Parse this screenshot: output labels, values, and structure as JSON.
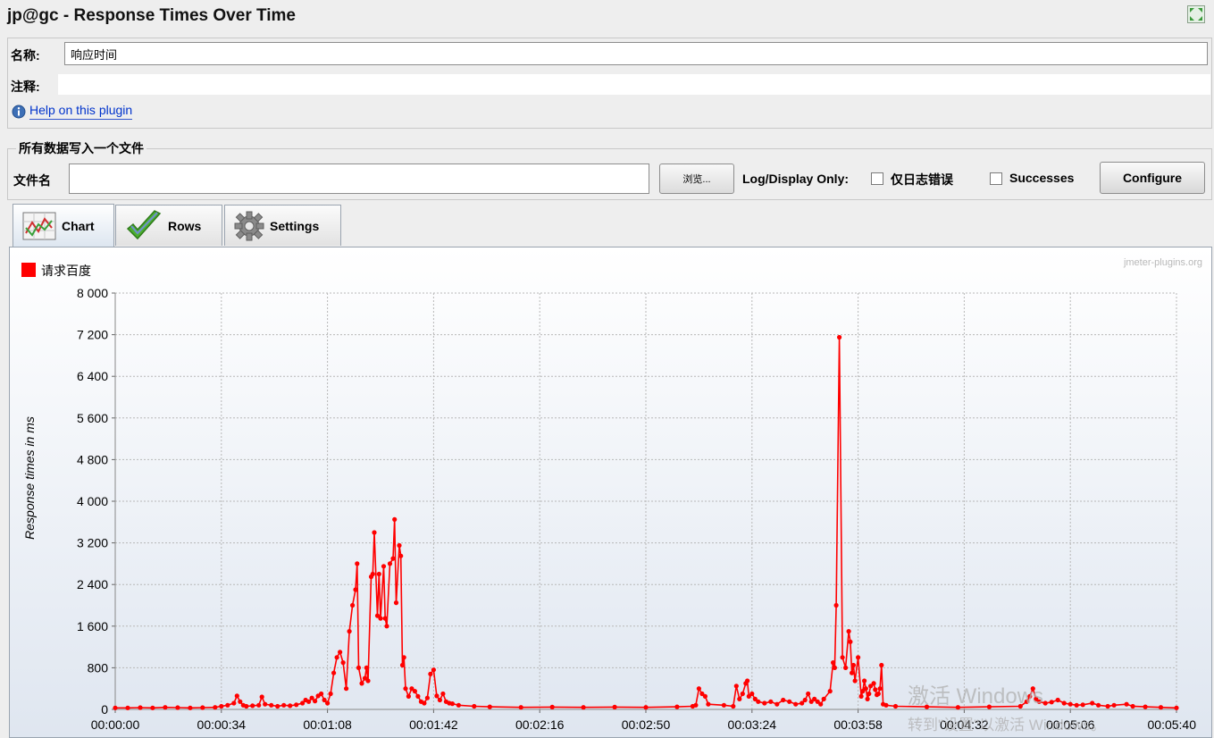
{
  "window": {
    "title": "jp@gc - Response Times Over Time",
    "expand_icon": "expand-arrows-icon"
  },
  "name_panel": {
    "name_label": "名称:",
    "name_value": "响应时间",
    "comment_label": "注释:",
    "comment_value": "",
    "help_icon": "info-icon",
    "help_link": "Help on this plugin"
  },
  "file_panel": {
    "legend": "所有数据写入一个文件",
    "filename_label": "文件名",
    "filename_value": "",
    "browse_label": "浏览...",
    "log_display_label": "Log/Display Only:",
    "errors_only_label": "仅日志错误",
    "errors_only_checked": false,
    "successes_label": "Successes",
    "successes_checked": false,
    "configure_label": "Configure"
  },
  "tabs": [
    {
      "label": "Chart",
      "icon": "line-chart-icon",
      "active": true
    },
    {
      "label": "Rows",
      "icon": "checkmark-icon",
      "active": false
    },
    {
      "label": "Settings",
      "icon": "gear-icon",
      "active": false
    }
  ],
  "watermark": {
    "plugin_site": "jmeter-plugins.org",
    "activation_line1": "激活 Windows",
    "activation_line2": "转到\"设置\"以激活 Windows。"
  },
  "chart_data": {
    "type": "line",
    "title": "",
    "xlabel": "",
    "ylabel": "Response times in ms",
    "ylim": [
      0,
      8000
    ],
    "yticks": [
      0,
      800,
      1600,
      2400,
      3200,
      4000,
      4800,
      5600,
      6400,
      7200,
      8000
    ],
    "ytick_labels": [
      "0",
      "800",
      "1 600",
      "2 400",
      "3 200",
      "4 000",
      "4 800",
      "5 600",
      "6 400",
      "7 200",
      "8 000"
    ],
    "xlim_seconds": [
      0,
      340
    ],
    "xtick_labels": [
      "00:00:00",
      "00:00:34",
      "00:01:08",
      "00:01:42",
      "00:02:16",
      "00:02:50",
      "00:03:24",
      "00:03:58",
      "00:04:32",
      "00:05:06",
      "00:05:40"
    ],
    "grid": true,
    "legend_position": "top-left",
    "series": [
      {
        "name": "请求百度",
        "color": "#ff0000",
        "points": [
          [
            0,
            30
          ],
          [
            4,
            30
          ],
          [
            8,
            35
          ],
          [
            12,
            30
          ],
          [
            16,
            40
          ],
          [
            20,
            35
          ],
          [
            24,
            30
          ],
          [
            28,
            35
          ],
          [
            32,
            40
          ],
          [
            34,
            60
          ],
          [
            36,
            80
          ],
          [
            38,
            120
          ],
          [
            39,
            260
          ],
          [
            40,
            150
          ],
          [
            41,
            80
          ],
          [
            42,
            60
          ],
          [
            44,
            70
          ],
          [
            46,
            80
          ],
          [
            47,
            240
          ],
          [
            48,
            100
          ],
          [
            50,
            80
          ],
          [
            52,
            60
          ],
          [
            54,
            80
          ],
          [
            56,
            70
          ],
          [
            58,
            90
          ],
          [
            60,
            120
          ],
          [
            61,
            180
          ],
          [
            62,
            150
          ],
          [
            63,
            220
          ],
          [
            64,
            160
          ],
          [
            65,
            260
          ],
          [
            66,
            300
          ],
          [
            67,
            180
          ],
          [
            68,
            120
          ],
          [
            69,
            300
          ],
          [
            70,
            700
          ],
          [
            71,
            1000
          ],
          [
            72,
            1100
          ],
          [
            73,
            900
          ],
          [
            74,
            400
          ],
          [
            75,
            1500
          ],
          [
            76,
            2000
          ],
          [
            77,
            2300
          ],
          [
            77.5,
            2800
          ],
          [
            78,
            800
          ],
          [
            79,
            500
          ],
          [
            80,
            600
          ],
          [
            80.5,
            800
          ],
          [
            81,
            550
          ],
          [
            82,
            2550
          ],
          [
            82.5,
            2600
          ],
          [
            83,
            3400
          ],
          [
            84,
            1800
          ],
          [
            84.5,
            2600
          ],
          [
            85,
            1750
          ],
          [
            86,
            2750
          ],
          [
            86.5,
            1750
          ],
          [
            87,
            1600
          ],
          [
            88,
            2800
          ],
          [
            89,
            2900
          ],
          [
            89.5,
            3650
          ],
          [
            90,
            2050
          ],
          [
            91,
            3150
          ],
          [
            91.5,
            2950
          ],
          [
            92,
            850
          ],
          [
            92.5,
            1000
          ],
          [
            93,
            400
          ],
          [
            94,
            250
          ],
          [
            95,
            400
          ],
          [
            96,
            350
          ],
          [
            97,
            250
          ],
          [
            98,
            150
          ],
          [
            99,
            120
          ],
          [
            100,
            220
          ],
          [
            101,
            680
          ],
          [
            102,
            760
          ],
          [
            103,
            260
          ],
          [
            104,
            180
          ],
          [
            105,
            300
          ],
          [
            106,
            150
          ],
          [
            107,
            120
          ],
          [
            108,
            110
          ],
          [
            110,
            80
          ],
          [
            115,
            60
          ],
          [
            120,
            50
          ],
          [
            130,
            40
          ],
          [
            140,
            45
          ],
          [
            150,
            40
          ],
          [
            160,
            45
          ],
          [
            170,
            40
          ],
          [
            180,
            50
          ],
          [
            185,
            60
          ],
          [
            186,
            80
          ],
          [
            187,
            400
          ],
          [
            188,
            300
          ],
          [
            189,
            250
          ],
          [
            190,
            100
          ],
          [
            195,
            80
          ],
          [
            198,
            60
          ],
          [
            199,
            450
          ],
          [
            200,
            200
          ],
          [
            201,
            300
          ],
          [
            202,
            500
          ],
          [
            202.5,
            550
          ],
          [
            203,
            250
          ],
          [
            204,
            300
          ],
          [
            205,
            200
          ],
          [
            206,
            150
          ],
          [
            208,
            120
          ],
          [
            210,
            150
          ],
          [
            212,
            100
          ],
          [
            214,
            180
          ],
          [
            216,
            150
          ],
          [
            218,
            100
          ],
          [
            220,
            120
          ],
          [
            221,
            180
          ],
          [
            222,
            300
          ],
          [
            223,
            150
          ],
          [
            224,
            200
          ],
          [
            225,
            150
          ],
          [
            226,
            100
          ],
          [
            227,
            200
          ],
          [
            229,
            350
          ],
          [
            230,
            900
          ],
          [
            230.5,
            800
          ],
          [
            231,
            2000
          ],
          [
            232,
            7150
          ],
          [
            233,
            1000
          ],
          [
            234,
            800
          ],
          [
            235,
            1500
          ],
          [
            235.5,
            1300
          ],
          [
            236,
            700
          ],
          [
            236.5,
            850
          ],
          [
            237,
            550
          ],
          [
            238,
            1000
          ],
          [
            239,
            250
          ],
          [
            239.5,
            350
          ],
          [
            240,
            550
          ],
          [
            240.5,
            400
          ],
          [
            241,
            200
          ],
          [
            241.5,
            300
          ],
          [
            242,
            450
          ],
          [
            243,
            500
          ],
          [
            243.5,
            380
          ],
          [
            244,
            280
          ],
          [
            244.5,
            300
          ],
          [
            245,
            400
          ],
          [
            245.5,
            850
          ],
          [
            246,
            100
          ],
          [
            247,
            80
          ],
          [
            250,
            60
          ],
          [
            260,
            50
          ],
          [
            270,
            40
          ],
          [
            280,
            50
          ],
          [
            290,
            60
          ],
          [
            292,
            150
          ],
          [
            293,
            250
          ],
          [
            294,
            400
          ],
          [
            295,
            200
          ],
          [
            296,
            150
          ],
          [
            298,
            120
          ],
          [
            300,
            140
          ],
          [
            302,
            180
          ],
          [
            304,
            120
          ],
          [
            306,
            100
          ],
          [
            308,
            80
          ],
          [
            310,
            90
          ],
          [
            313,
            120
          ],
          [
            315,
            80
          ],
          [
            318,
            60
          ],
          [
            320,
            80
          ],
          [
            324,
            100
          ],
          [
            326,
            60
          ],
          [
            330,
            50
          ],
          [
            335,
            40
          ],
          [
            340,
            30
          ]
        ]
      }
    ]
  }
}
